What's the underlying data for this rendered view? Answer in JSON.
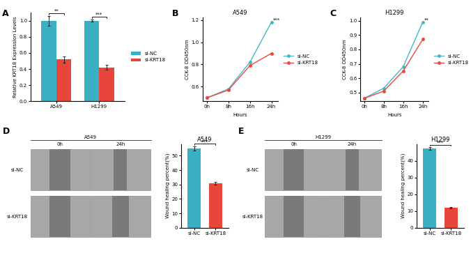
{
  "chart_data": [
    {
      "panel": "A",
      "type": "bar",
      "categories": [
        "A549",
        "H1299"
      ],
      "y_label": "Relative KRT18 Expression Levels",
      "ylim": [
        0,
        1.1
      ],
      "yticks": [
        {
          "value": 0,
          "label": "0.0"
        },
        {
          "value": 0.2,
          "label": "0.2"
        },
        {
          "value": 0.4,
          "label": "0.4"
        },
        {
          "value": 0.6,
          "label": "0.6"
        },
        {
          "value": 0.8,
          "label": "0.8"
        },
        {
          "value": 1,
          "label": "1.0"
        }
      ],
      "series": [
        {
          "name": "si-NC",
          "color": "#3ab0c3",
          "values": [
            1.0,
            1.0
          ],
          "errors": [
            0.06,
            0.015
          ]
        },
        {
          "name": "si-KRT18",
          "color": "#e8463a",
          "values": [
            0.52,
            0.42
          ],
          "errors": [
            0.04,
            0.03
          ]
        }
      ],
      "annotations": [
        {
          "text": "**",
          "x": "A549"
        },
        {
          "text": "***",
          "x": "H1299"
        }
      ],
      "legend": "right"
    },
    {
      "panel": "B",
      "type": "line",
      "title": "A549",
      "categories": [
        "0h",
        "8h",
        "16h",
        "24h"
      ],
      "x_label": "Hours",
      "y_label": "CCK-8 OD450nm",
      "ylim": [
        0.47,
        1.22
      ],
      "yticks": [
        0.6,
        0.8,
        {
          "value": 1,
          "label": "1.0"
        },
        1.2
      ],
      "series": [
        {
          "name": "si-NC",
          "color": "#45b6cc",
          "marker": "o",
          "values": [
            0.5,
            0.58,
            0.82,
            1.18
          ]
        },
        {
          "name": "si-KRT18",
          "color": "#e8493a",
          "marker": "o",
          "values": [
            0.5,
            0.57,
            0.79,
            0.9
          ]
        }
      ],
      "annotations": [
        {
          "text": "***",
          "x": "24h"
        }
      ],
      "legend": "right"
    },
    {
      "panel": "C",
      "type": "line",
      "title": "H1299",
      "categories": [
        "0h",
        "8h",
        "16h",
        "24h"
      ],
      "x_label": "Hours",
      "y_label": "CCK-8 OD450nm",
      "ylim": [
        0.44,
        1.02
      ],
      "yticks": [
        0.5,
        0.6,
        0.7,
        0.8,
        0.9,
        {
          "value": 1,
          "label": "1.0"
        }
      ],
      "series": [
        {
          "name": "si-NC",
          "color": "#45b6cc",
          "marker": "o",
          "values": [
            0.46,
            0.53,
            0.68,
            0.99
          ]
        },
        {
          "name": "si-KRT18",
          "color": "#e8493a",
          "marker": "o",
          "values": [
            0.46,
            0.51,
            0.65,
            0.87
          ]
        }
      ],
      "annotations": [
        {
          "text": "**",
          "x": "24h"
        }
      ],
      "legend": "right"
    },
    {
      "type": "bar",
      "title": "A549",
      "categories": [
        "si-NC",
        "si-KRT18"
      ],
      "y_label": "Wound healing percent(%)",
      "ylim": [
        0,
        58
      ],
      "yticks": [
        0,
        10,
        20,
        30,
        40,
        50
      ],
      "values": [
        55,
        31
      ],
      "errors": [
        1.5,
        1.0
      ],
      "colors": [
        "#3ab0c3",
        "#e8463a"
      ],
      "annotations": [
        {
          "text": "***"
        }
      ]
    },
    {
      "type": "bar",
      "title": "H1299",
      "categories": [
        "si-NC",
        "si-KRT18"
      ],
      "y_label": "Wound healing percent(%)",
      "ylim": [
        0,
        50
      ],
      "yticks": [
        0,
        10,
        20,
        30,
        40
      ],
      "values": [
        47.5,
        12
      ],
      "errors": [
        0.7,
        0.5
      ],
      "colors": [
        "#3ab0c3",
        "#e8463a"
      ],
      "annotations": [
        {
          "text": "***"
        }
      ]
    }
  ],
  "images": [
    {
      "panel": "D",
      "title": "A549",
      "columns": [
        "0h",
        "24h"
      ],
      "rows": [
        "si-NC",
        "si-KRT18"
      ]
    },
    {
      "panel": "E",
      "title": "H1299",
      "columns": [
        "0h",
        "24h"
      ],
      "rows": [
        "si-NC",
        "si-KRT18"
      ]
    }
  ]
}
